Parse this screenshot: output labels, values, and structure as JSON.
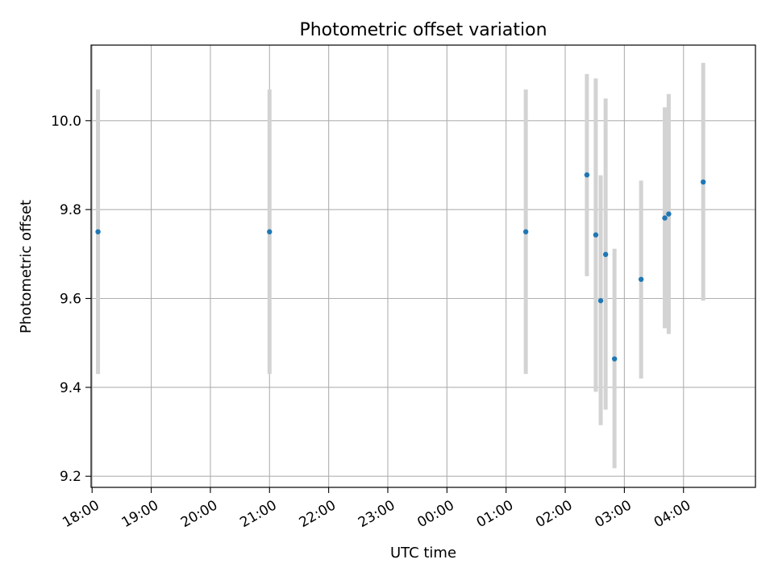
{
  "chart_data": {
    "type": "scatter",
    "title": "Photometric offset variation",
    "xlabel": "UTC time",
    "ylabel": "Photometric offset",
    "x_tick_labels": [
      "18:00",
      "19:00",
      "20:00",
      "21:00",
      "22:00",
      "23:00",
      "00:00",
      "01:00",
      "02:00",
      "03:00",
      "04:00"
    ],
    "y_ticks": [
      9.2,
      9.4,
      9.6,
      9.8,
      10.0
    ],
    "y_tick_labels": [
      "9.2",
      "9.4",
      "9.6",
      "9.8",
      "10.0"
    ],
    "xlim": [
      "17:59",
      "05:13"
    ],
    "ylim": [
      9.175,
      10.17
    ],
    "grid": true,
    "colors": {
      "points": "#1f77b4",
      "error_bars": "#d3d3d3",
      "grid": "#b0b0b0"
    },
    "points": [
      {
        "x": "18:06",
        "y": 9.75,
        "y_low": 9.43,
        "y_high": 10.07
      },
      {
        "x": "21:00",
        "y": 9.75,
        "y_low": 9.43,
        "y_high": 10.07
      },
      {
        "x": "01:20",
        "y": 9.75,
        "y_low": 9.43,
        "y_high": 10.07
      },
      {
        "x": "02:22",
        "y": 9.878,
        "y_low": 9.65,
        "y_high": 10.105
      },
      {
        "x": "02:31",
        "y": 9.743,
        "y_low": 9.39,
        "y_high": 10.095
      },
      {
        "x": "02:36",
        "y": 9.595,
        "y_low": 9.315,
        "y_high": 9.877
      },
      {
        "x": "02:41",
        "y": 9.699,
        "y_low": 9.35,
        "y_high": 10.05
      },
      {
        "x": "02:50",
        "y": 9.464,
        "y_low": 9.218,
        "y_high": 9.712
      },
      {
        "x": "03:17",
        "y": 9.643,
        "y_low": 9.42,
        "y_high": 9.865
      },
      {
        "x": "03:41",
        "y": 9.781,
        "y_low": 9.533,
        "y_high": 10.03
      },
      {
        "x": "03:45",
        "y": 9.79,
        "y_low": 9.52,
        "y_high": 10.06
      },
      {
        "x": "04:20",
        "y": 9.862,
        "y_low": 9.595,
        "y_high": 10.13
      }
    ]
  }
}
